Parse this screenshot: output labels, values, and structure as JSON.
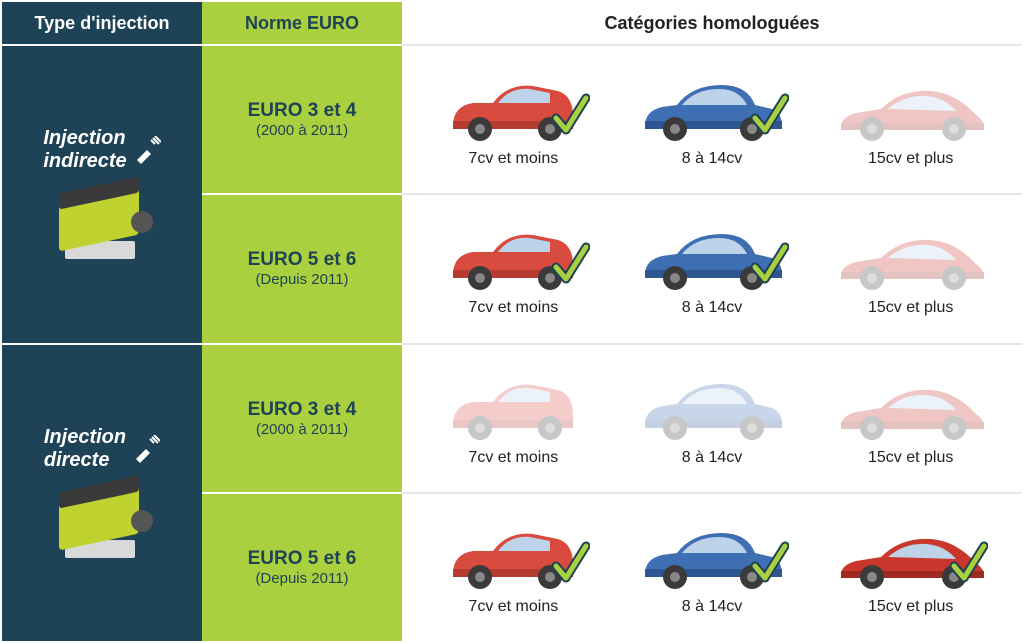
{
  "colors": {
    "type_bg": "#1e4256",
    "norm_bg": "#aad040",
    "norm_text": "#1e4256",
    "header_text": "#ffffff",
    "cat_text": "#222222",
    "check_stroke": "#1e4256",
    "check_fill": "#aad040",
    "car_red_body": "#d94b3f",
    "car_red_dark": "#b53a30",
    "car_blue_body": "#3e6fb3",
    "car_blue_dark": "#2e5690",
    "car_sport_body": "#c9362b",
    "car_sport_dark": "#9e2a21",
    "wheel": "#3a3a3a",
    "hub": "#888888",
    "window": "#bcd3ea"
  },
  "headers": {
    "type": "Type d'injection",
    "norm": "Norme EURO",
    "cat": "Catégories homologuées"
  },
  "rows": [
    {
      "injection_label": "Injection\nindirecte",
      "norm_main": "EURO 3 et 4",
      "norm_sub": "(2000 à 2011)",
      "cars": [
        {
          "variant": "hatch",
          "label": "7cv et moins",
          "approved": true
        },
        {
          "variant": "sedan",
          "label": "8 à 14cv",
          "approved": true
        },
        {
          "variant": "sport",
          "label": "15cv et plus",
          "approved": false
        }
      ]
    },
    {
      "injection_label": "",
      "norm_main": "EURO 5 et 6",
      "norm_sub": "(Depuis 2011)",
      "cars": [
        {
          "variant": "hatch",
          "label": "7cv et moins",
          "approved": true
        },
        {
          "variant": "sedan",
          "label": "8 à 14cv",
          "approved": true
        },
        {
          "variant": "sport",
          "label": "15cv et plus",
          "approved": false
        }
      ]
    },
    {
      "injection_label": "Injection\ndirecte",
      "norm_main": "EURO 3 et 4",
      "norm_sub": "(2000 à 2011)",
      "cars": [
        {
          "variant": "hatch",
          "label": "7cv et moins",
          "approved": false
        },
        {
          "variant": "sedan",
          "label": "8 à 14cv",
          "approved": false
        },
        {
          "variant": "sport",
          "label": "15cv et plus",
          "approved": false
        }
      ]
    },
    {
      "injection_label": "",
      "norm_main": "EURO 5 et 6",
      "norm_sub": "(Depuis 2011)",
      "cars": [
        {
          "variant": "hatch",
          "label": "7cv et moins",
          "approved": true
        },
        {
          "variant": "sedan",
          "label": "8 à 14cv",
          "approved": true
        },
        {
          "variant": "sport",
          "label": "15cv et plus",
          "approved": true
        }
      ]
    }
  ],
  "injection_groups": [
    {
      "label_line1": "Injection",
      "label_line2": "indirecte",
      "row_span": 2
    },
    {
      "label_line1": "Injection",
      "label_line2": "directe",
      "row_span": 2
    }
  ]
}
